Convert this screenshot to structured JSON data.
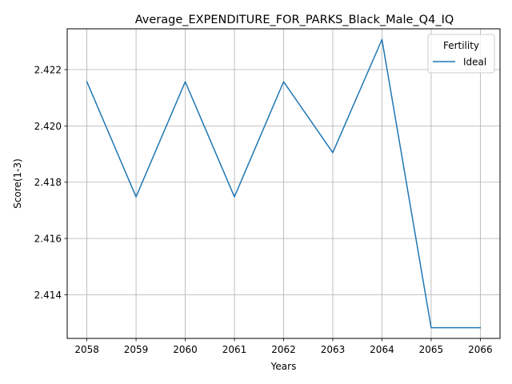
{
  "chart_data": {
    "type": "line",
    "title": "Average_EXPENDITURE_FOR_PARKS_Black_Male_Q4_IQ",
    "xlabel": "Years",
    "ylabel": "Score(1-3)",
    "x": [
      2058,
      2059,
      2060,
      2061,
      2062,
      2063,
      2064,
      2065,
      2066
    ],
    "xticks": [
      "2058",
      "2059",
      "2060",
      "2061",
      "2062",
      "2063",
      "2064",
      "2065",
      "2066"
    ],
    "yticks": [
      "2.414",
      "2.416",
      "2.418",
      "2.420",
      "2.422"
    ],
    "xlim": [
      2057.6,
      2066.4
    ],
    "ylim": [
      2.41245,
      2.42345
    ],
    "grid": true,
    "legend": {
      "title": "Fertility",
      "placement": "top-right"
    },
    "series": [
      {
        "name": "Ideal",
        "color": "#1f77b4",
        "values": [
          2.42157,
          2.41748,
          2.42157,
          2.41748,
          2.42157,
          2.41905,
          2.42307,
          2.41283,
          2.41283
        ]
      }
    ]
  }
}
